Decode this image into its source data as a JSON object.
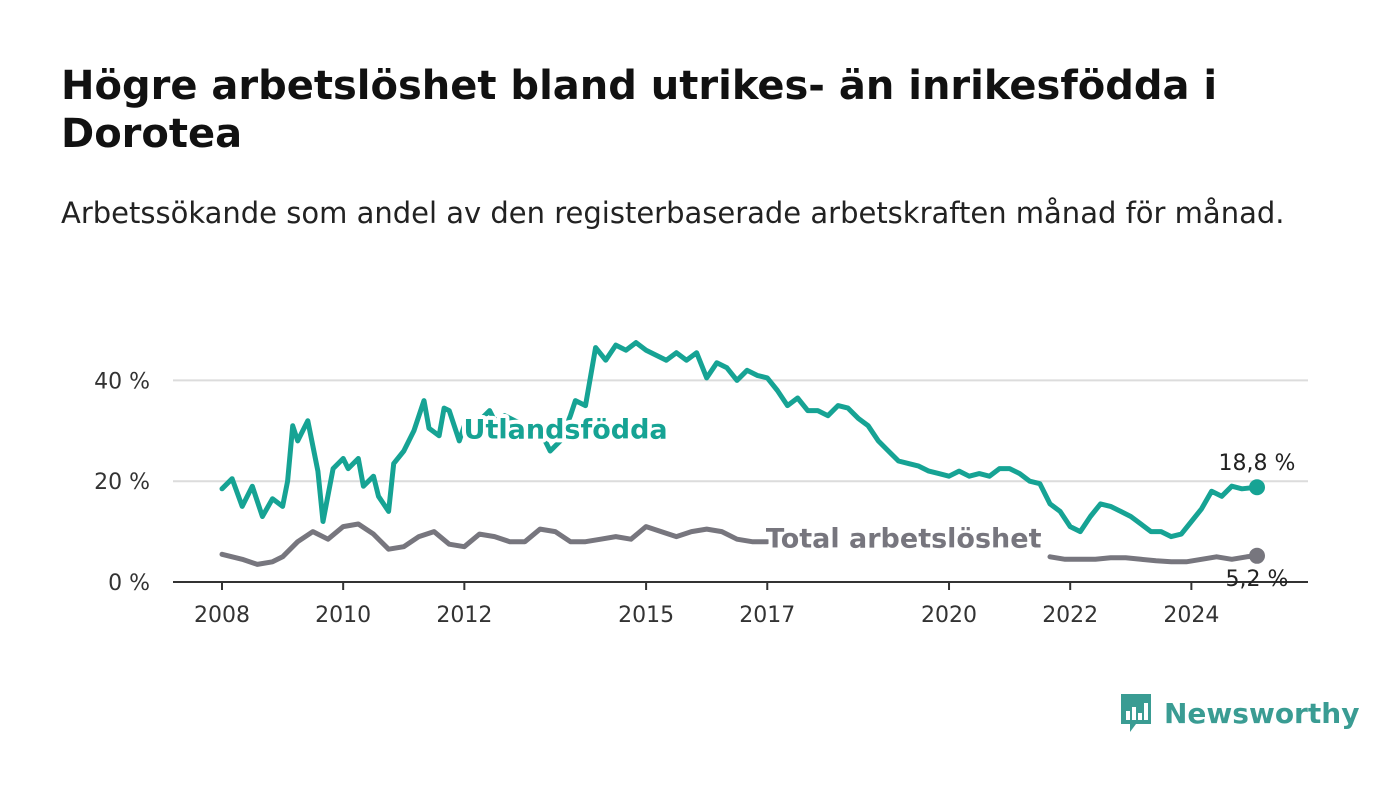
{
  "header": {
    "title": "Högre arbetslöshet bland utrikes- än inrikesfödda i Dorotea",
    "subtitle": "Arbetssökande som andel av den registerbaserade arbetskraften månad för månad."
  },
  "brand": {
    "name": "Newsworthy",
    "icon": "newsworthy-logo-icon",
    "color": "#3a9c93"
  },
  "chart_data": {
    "type": "line",
    "title": "Högre arbetslöshet bland utrikes- än inrikesfödda i Dorotea",
    "subtitle": "Arbetssökande som andel av den registerbaserade arbetskraften månad för månad.",
    "xlabel": "",
    "ylabel": "",
    "xlim": [
      "2008-01",
      "2025-06"
    ],
    "ylim": [
      0,
      50
    ],
    "y_ticks": [
      {
        "value": 0,
        "label": "0 %"
      },
      {
        "value": 20,
        "label": "20 %"
      },
      {
        "value": 40,
        "label": "40 %"
      }
    ],
    "x_ticks": [
      {
        "value": "2008-01",
        "label": "2008"
      },
      {
        "value": "2010-01",
        "label": "2010"
      },
      {
        "value": "2012-01",
        "label": "2012"
      },
      {
        "value": "2015-01",
        "label": "2015"
      },
      {
        "value": "2017-01",
        "label": "2017"
      },
      {
        "value": "2020-01",
        "label": "2020"
      },
      {
        "value": "2022-01",
        "label": "2022"
      },
      {
        "value": "2024-01",
        "label": "2024"
      }
    ],
    "grid": true,
    "legend": "inline",
    "series": [
      {
        "name": "Utlandsfödda",
        "color": "#16a394",
        "end_label": "18,8 %",
        "points": [
          [
            "2008-01",
            18.5
          ],
          [
            "2008-03",
            20.5
          ],
          [
            "2008-05",
            15
          ],
          [
            "2008-07",
            19
          ],
          [
            "2008-09",
            13
          ],
          [
            "2008-11",
            16.5
          ],
          [
            "2009-01",
            15
          ],
          [
            "2009-02",
            20
          ],
          [
            "2009-03",
            31
          ],
          [
            "2009-04",
            28
          ],
          [
            "2009-06",
            32
          ],
          [
            "2009-08",
            22
          ],
          [
            "2009-09",
            12
          ],
          [
            "2009-11",
            22.5
          ],
          [
            "2010-01",
            24.5
          ],
          [
            "2010-02",
            22.5
          ],
          [
            "2010-04",
            24.5
          ],
          [
            "2010-05",
            19
          ],
          [
            "2010-07",
            21
          ],
          [
            "2010-08",
            17
          ],
          [
            "2010-10",
            14
          ],
          [
            "2010-11",
            23.5
          ],
          [
            "2011-01",
            26
          ],
          [
            "2011-03",
            30
          ],
          [
            "2011-05",
            36
          ],
          [
            "2011-06",
            30.5
          ],
          [
            "2011-08",
            29
          ],
          [
            "2011-09",
            34.5
          ],
          [
            "2011-10",
            34
          ],
          [
            "2011-12",
            28
          ],
          [
            "2012-01",
            31
          ],
          [
            "2012-03",
            31
          ],
          [
            "2012-06",
            34
          ],
          [
            "2012-07",
            32
          ],
          [
            "2012-09",
            33
          ],
          [
            "2012-10",
            32.5
          ],
          [
            "2013-01",
            31
          ],
          [
            "2013-04",
            30
          ],
          [
            "2013-06",
            26
          ],
          [
            "2013-08",
            28
          ],
          [
            "2013-10",
            33
          ],
          [
            "2013-11",
            36
          ],
          [
            "2014-01",
            35
          ],
          [
            "2014-03",
            46.5
          ],
          [
            "2014-05",
            44
          ],
          [
            "2014-07",
            47
          ],
          [
            "2014-09",
            46
          ],
          [
            "2014-11",
            47.5
          ],
          [
            "2015-01",
            46
          ],
          [
            "2015-03",
            45
          ],
          [
            "2015-05",
            44
          ],
          [
            "2015-07",
            45.5
          ],
          [
            "2015-09",
            44
          ],
          [
            "2015-11",
            45.5
          ],
          [
            "2016-01",
            40.5
          ],
          [
            "2016-03",
            43.5
          ],
          [
            "2016-05",
            42.5
          ],
          [
            "2016-07",
            40
          ],
          [
            "2016-09",
            42
          ],
          [
            "2016-11",
            41
          ],
          [
            "2017-01",
            40.5
          ],
          [
            "2017-03",
            38
          ],
          [
            "2017-05",
            35
          ],
          [
            "2017-07",
            36.5
          ],
          [
            "2017-09",
            34
          ],
          [
            "2017-11",
            34
          ],
          [
            "2018-01",
            33
          ],
          [
            "2018-03",
            35
          ],
          [
            "2018-05",
            34.5
          ],
          [
            "2018-07",
            32.5
          ],
          [
            "2018-09",
            31
          ],
          [
            "2018-11",
            28
          ],
          [
            "2019-01",
            26
          ],
          [
            "2019-03",
            24
          ],
          [
            "2019-05",
            23.5
          ],
          [
            "2019-07",
            23
          ],
          [
            "2019-09",
            22
          ],
          [
            "2019-11",
            21.5
          ],
          [
            "2020-01",
            21
          ],
          [
            "2020-03",
            22
          ],
          [
            "2020-05",
            21
          ],
          [
            "2020-07",
            21.5
          ],
          [
            "2020-09",
            21
          ],
          [
            "2020-11",
            22.5
          ],
          [
            "2021-01",
            22.5
          ],
          [
            "2021-03",
            21.5
          ],
          [
            "2021-05",
            20
          ],
          [
            "2021-07",
            19.5
          ],
          [
            "2021-09",
            15.5
          ],
          [
            "2021-11",
            14
          ],
          [
            "2022-01",
            11
          ],
          [
            "2022-03",
            10
          ],
          [
            "2022-05",
            13
          ],
          [
            "2022-07",
            15.5
          ],
          [
            "2022-09",
            15
          ],
          [
            "2022-11",
            14
          ],
          [
            "2023-01",
            13
          ],
          [
            "2023-03",
            11.5
          ],
          [
            "2023-05",
            10
          ],
          [
            "2023-07",
            10
          ],
          [
            "2023-09",
            9
          ],
          [
            "2023-11",
            9.5
          ],
          [
            "2024-01",
            12
          ],
          [
            "2024-03",
            14.5
          ],
          [
            "2024-05",
            18
          ],
          [
            "2024-07",
            17
          ],
          [
            "2024-09",
            19
          ],
          [
            "2024-11",
            18.5
          ],
          [
            "2025-02",
            18.8
          ]
        ]
      },
      {
        "name": "Total arbetslöshet",
        "color": "#77767e",
        "end_label": "5,2 %",
        "points": [
          [
            "2008-01",
            5.5
          ],
          [
            "2008-03",
            5
          ],
          [
            "2008-05",
            4.5
          ],
          [
            "2008-08",
            3.5
          ],
          [
            "2008-11",
            4
          ],
          [
            "2009-01",
            5
          ],
          [
            "2009-04",
            8
          ],
          [
            "2009-07",
            10
          ],
          [
            "2009-10",
            8.5
          ],
          [
            "2010-01",
            11
          ],
          [
            "2010-04",
            11.5
          ],
          [
            "2010-07",
            9.5
          ],
          [
            "2010-10",
            6.5
          ],
          [
            "2011-01",
            7
          ],
          [
            "2011-04",
            9
          ],
          [
            "2011-07",
            10
          ],
          [
            "2011-10",
            7.5
          ],
          [
            "2012-01",
            7
          ],
          [
            "2012-04",
            9.5
          ],
          [
            "2012-07",
            9
          ],
          [
            "2012-10",
            8
          ],
          [
            "2013-01",
            8
          ],
          [
            "2013-04",
            10.5
          ],
          [
            "2013-07",
            10
          ],
          [
            "2013-10",
            8
          ],
          [
            "2014-01",
            8
          ],
          [
            "2014-04",
            8.5
          ],
          [
            "2014-07",
            9
          ],
          [
            "2014-10",
            8.5
          ],
          [
            "2015-01",
            11
          ],
          [
            "2015-04",
            10
          ],
          [
            "2015-07",
            9
          ],
          [
            "2015-10",
            10
          ],
          [
            "2016-01",
            10.5
          ],
          [
            "2016-04",
            10
          ],
          [
            "2016-07",
            8.5
          ],
          [
            "2016-10",
            8
          ],
          [
            "2017-01",
            8
          ],
          [
            "2021-09",
            5
          ],
          [
            "2021-12",
            4.5
          ],
          [
            "2022-03",
            4.5
          ],
          [
            "2022-06",
            4.5
          ],
          [
            "2022-09",
            4.8
          ],
          [
            "2022-12",
            4.8
          ],
          [
            "2023-03",
            4.5
          ],
          [
            "2023-06",
            4.2
          ],
          [
            "2023-09",
            4
          ],
          [
            "2023-12",
            4
          ],
          [
            "2024-03",
            4.5
          ],
          [
            "2024-06",
            5
          ],
          [
            "2024-09",
            4.5
          ],
          [
            "2024-12",
            5
          ],
          [
            "2025-02",
            5.2
          ]
        ]
      }
    ]
  }
}
